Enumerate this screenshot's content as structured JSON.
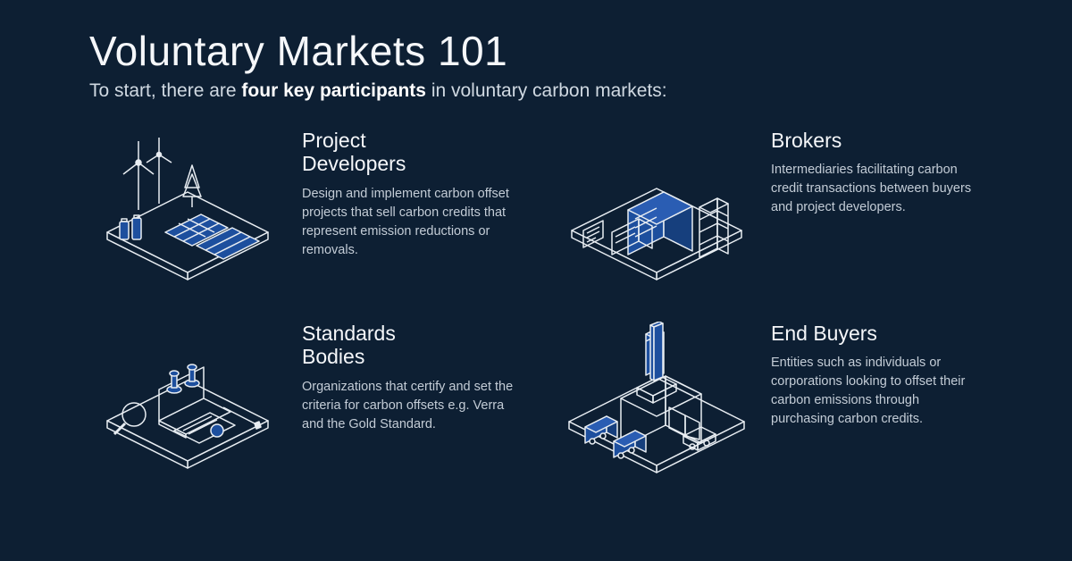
{
  "type": "infographic",
  "background_color": "#0d1f33",
  "text_color": "#e8edf2",
  "title_color": "#f5f7fa",
  "body_color": "#c3ccd6",
  "accent_blue": "#1d4f9e",
  "accent_blue_light": "#3a6fc9",
  "line_color": "#e8edf2",
  "title": "Voluntary Markets 101",
  "title_fontsize": 46,
  "subtitle_pre": "To start, there are ",
  "subtitle_bold": "four key participants",
  "subtitle_post": " in voluntary carbon markets:",
  "subtitle_fontsize": 21,
  "heading_fontsize": 23,
  "body_fontsize": 14.5,
  "grid": {
    "cols": 2,
    "rows": 2,
    "col_gap": 50,
    "row_gap": 36
  },
  "cells": [
    {
      "key": "project-developers",
      "title": "Project\nDevelopers",
      "body": "Design and implement carbon offset projects that sell carbon credits that represent emission reductions or removals.",
      "icon": "renewables-platform"
    },
    {
      "key": "brokers",
      "title": "Brokers",
      "body": "Intermediaries facilitating carbon credit transactions between buyers and project developers.",
      "icon": "exchange-buildings"
    },
    {
      "key": "standards-bodies",
      "title": "Standards\nBodies",
      "body": "Organizations that certify and set the criteria for carbon offsets e.g. Verra and the Gold Standard.",
      "icon": "audit-tools"
    },
    {
      "key": "end-buyers",
      "title": "End Buyers",
      "body": "Entities such as individuals or corporations looking to offset their carbon emissions through purchasing carbon credits.",
      "icon": "factory-trucks"
    }
  ],
  "connector": {
    "from": "brokers",
    "to": "end-buyers",
    "style": "vertical-pipe",
    "color": "#1d4f9e"
  }
}
